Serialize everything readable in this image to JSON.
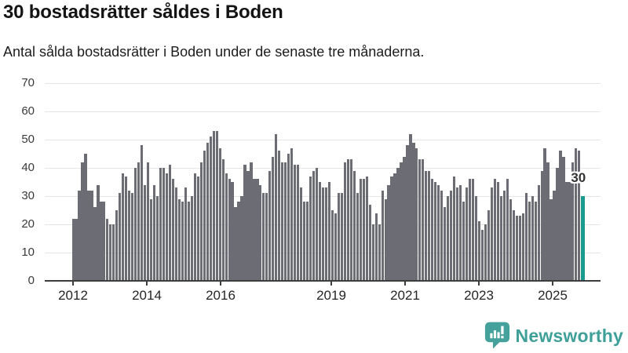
{
  "header": {
    "title": "30 bostadsrätter såldes i Boden",
    "subtitle": "Antal sålda bostadsrätter i Boden under de senaste tre månaderna."
  },
  "chart_data": {
    "type": "bar",
    "title": "30 bostadsrätter såldes i Boden",
    "subtitle": "Antal sålda bostadsrätter i Boden under de senaste tre månaderna.",
    "x_unit": "month",
    "x_first_bar": "2012-01",
    "x_last_bar": "2025-08",
    "x_tick_labels": [
      "2012",
      "2014",
      "2016",
      "2019",
      "2021",
      "2023",
      "2025"
    ],
    "y_ticks": [
      0,
      10,
      20,
      30,
      40,
      50,
      60,
      70
    ],
    "ylim": [
      0,
      70
    ],
    "grid": "horizontal",
    "legend": "none",
    "values": [
      22,
      22,
      32,
      42,
      45,
      32,
      32,
      26,
      34,
      28,
      28,
      22,
      20,
      20,
      25,
      31,
      38,
      37,
      32,
      31,
      40,
      42,
      48,
      34,
      42,
      29,
      34,
      30,
      40,
      40,
      38,
      41,
      36,
      33,
      29,
      28,
      33,
      28,
      30,
      38,
      37,
      42,
      46,
      49,
      51,
      53,
      53,
      47,
      43,
      38,
      36,
      35,
      26,
      28,
      30,
      41,
      39,
      42,
      36,
      36,
      34,
      31,
      31,
      39,
      44,
      52,
      46,
      42,
      42,
      45,
      47,
      41,
      41,
      33,
      28,
      28,
      37,
      39,
      40,
      35,
      33,
      33,
      35,
      25,
      24,
      31,
      31,
      42,
      43,
      43,
      39,
      31,
      36,
      36,
      37,
      27,
      20,
      24,
      20,
      32,
      29,
      34,
      37,
      38,
      40,
      42,
      44,
      48,
      52,
      49,
      47,
      43,
      43,
      39,
      39,
      36,
      35,
      34,
      32,
      26,
      30,
      32,
      37,
      33,
      34,
      28,
      33,
      36,
      36,
      30,
      21,
      18,
      20,
      25,
      33,
      36,
      35,
      30,
      32,
      36,
      29,
      25,
      23,
      23,
      24,
      31,
      28,
      30,
      28,
      34,
      39,
      47,
      42,
      29,
      32,
      40,
      46,
      44,
      35,
      35,
      42,
      47,
      46,
      30
    ],
    "highlight": {
      "index": 163,
      "value": 30,
      "label": "30"
    },
    "colors": {
      "bar": "#6c6c75",
      "highlight": "#189a90",
      "grid": "#e5e5e5",
      "axis": "#3d3d3d"
    }
  },
  "branding": {
    "wordmark": "Newsworthy",
    "color": "#3f9f99"
  }
}
